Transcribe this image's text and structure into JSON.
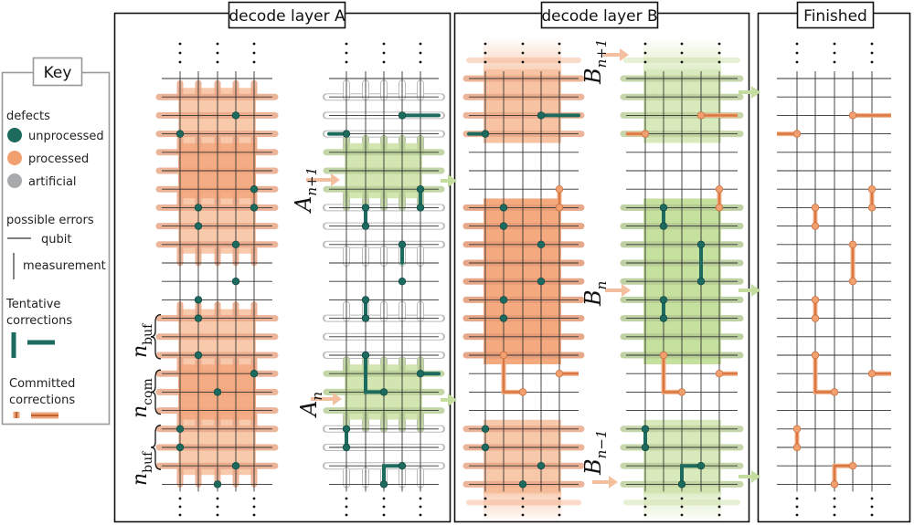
{
  "panels": {
    "layer_a": {
      "title": "decode layer A"
    },
    "layer_b": {
      "title": "decode layer B"
    },
    "finished": {
      "title": "Finished"
    }
  },
  "key": {
    "title": "Key",
    "defects_heading": "defects",
    "defects": [
      {
        "label": "unprocessed",
        "color": "#1d6b5f"
      },
      {
        "label": "processed",
        "color": "#f3a070"
      },
      {
        "label": "artificial",
        "color": "#a7a9ab"
      }
    ],
    "errors_heading": "possible errors",
    "errors": [
      {
        "label": "qubit"
      },
      {
        "label": "measurement"
      }
    ],
    "tentative_heading_1": "Tentative",
    "tentative_heading_2": "corrections",
    "committed_heading_1": "Committed",
    "committed_heading_2": "corrections"
  },
  "labels": {
    "a_next": {
      "base": "A",
      "sub": "n+1"
    },
    "a_n": {
      "base": "A",
      "sub": "n"
    },
    "b_next": {
      "base": "B",
      "sub": "n+1"
    },
    "b_n": {
      "base": "B",
      "sub": "n"
    },
    "b_prev": {
      "base": "B",
      "sub": "n−1"
    },
    "n_buf_top": {
      "base": "n",
      "sub": "buf"
    },
    "n_com": {
      "base": "n",
      "sub": "com"
    },
    "n_buf_bottom": {
      "base": "n",
      "sub": "buf"
    }
  },
  "colors": {
    "unprocessed": "#1d6b5f",
    "processed": "#f3a070",
    "committed": "#d9773e",
    "orange_region": "#f9c9ab",
    "green_region": "#d3e6b1"
  }
}
